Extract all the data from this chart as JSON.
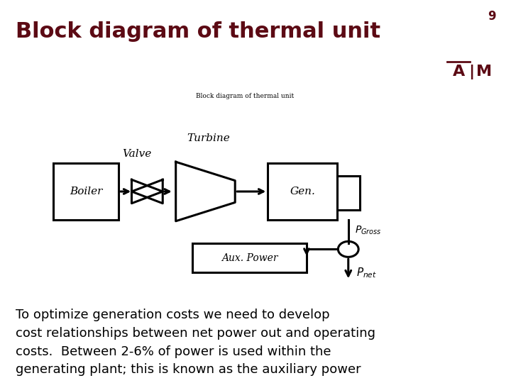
{
  "title": "Block diagram of thermal unit",
  "slide_number": "9",
  "background_color": "#ffffff",
  "title_color": "#5c0a14",
  "title_fontsize": 22,
  "divider_color": "#5c0a14",
  "body_text_lines": [
    "To optimize generation costs we need to develop",
    "cost relationships between net power out and operating",
    "costs.  Between 2-6% of power is used within the",
    "generating plant; this is known as the auxiliary power"
  ],
  "body_fontsize": 13,
  "image_caption": "Block diagram of thermal unit",
  "image_bg": "#e8e8e8",
  "tamu_maroon": "#5c0a14"
}
